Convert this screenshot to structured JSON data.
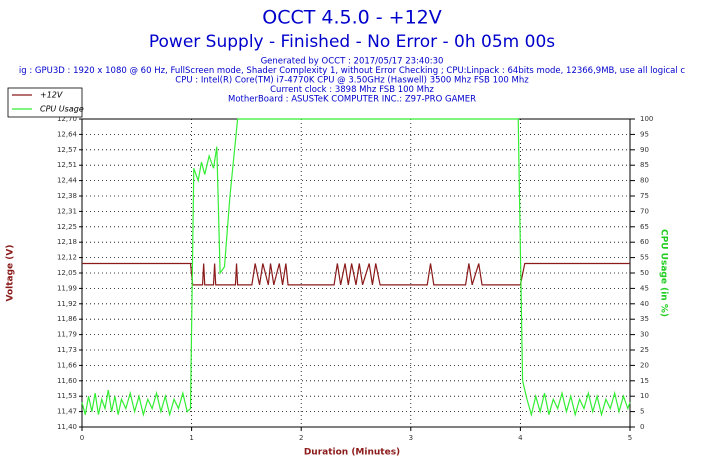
{
  "chart_data": {
    "type": "line",
    "title": "OCCT 4.5.0 - +12V",
    "subtitle": "Power Supply - Finished - No Error - 0h 05m 00s",
    "annotations": [
      "Generated by OCCT : 2017/05/17 23:40:30",
      "ig : GPU3D : 1920 x 1080 @ 60 Hz, FullScreen mode, Shader Complexity 1, without Error Checking ; CPU:Linpack : 64bits mode, 12366,9MB, use all logical c",
      "CPU : Intel(R) Core(TM) i7-4770K CPU @ 3.50GHz (Haswell) 3500 Mhz FSB 100 Mhz",
      "Current clock : 3898 Mhz FSB 100 Mhz",
      "MotherBoard : ASUSTeK COMPUTER INC.: Z97-PRO GAMER"
    ],
    "xlabel": "Duration (Minutes)",
    "ylabel": "Voltage (V)",
    "y2label": "CPU Usage (in %)",
    "xlim": [
      0,
      5
    ],
    "xticks": [
      0,
      1,
      2,
      3,
      4,
      5
    ],
    "ylim": [
      11.4,
      12.7
    ],
    "yticks": [
      {
        "value": 11.4,
        "label": "11,40"
      },
      {
        "value": 11.465,
        "label": "11,47"
      },
      {
        "value": 11.53,
        "label": "11,53"
      },
      {
        "value": 11.595,
        "label": "11,60"
      },
      {
        "value": 11.66,
        "label": "11,66"
      },
      {
        "value": 11.725,
        "label": "11,73"
      },
      {
        "value": 11.79,
        "label": "11,79"
      },
      {
        "value": 11.855,
        "label": "11,86"
      },
      {
        "value": 11.92,
        "label": "11,92"
      },
      {
        "value": 11.985,
        "label": "11,99"
      },
      {
        "value": 12.05,
        "label": "12,05"
      },
      {
        "value": 12.115,
        "label": "12,12"
      },
      {
        "value": 12.18,
        "label": "12,18"
      },
      {
        "value": 12.245,
        "label": "12,25"
      },
      {
        "value": 12.31,
        "label": "12,31"
      },
      {
        "value": 12.375,
        "label": "12,38"
      },
      {
        "value": 12.44,
        "label": "12,44"
      },
      {
        "value": 12.505,
        "label": "12,51"
      },
      {
        "value": 12.57,
        "label": "12,57"
      },
      {
        "value": 12.635,
        "label": "12,64"
      },
      {
        "value": 12.7,
        "label": "12,70"
      }
    ],
    "y2lim": [
      0,
      100
    ],
    "y2ticks": [
      0,
      5,
      10,
      15,
      20,
      25,
      30,
      35,
      40,
      45,
      50,
      55,
      60,
      65,
      70,
      75,
      80,
      85,
      90,
      95,
      100
    ],
    "grid": true,
    "legend": "upper left",
    "series": [
      {
        "name": "+12V",
        "color": "#8b1a1a",
        "x": [
          0,
          0.99,
          1.01,
          1.1,
          1.11,
          1.12,
          1.2,
          1.21,
          1.22,
          1.4,
          1.41,
          1.42,
          1.55,
          1.58,
          1.62,
          1.65,
          1.7,
          1.72,
          1.75,
          1.8,
          1.83,
          1.86,
          1.88,
          2.3,
          2.33,
          2.36,
          2.4,
          2.43,
          2.46,
          2.5,
          2.53,
          2.56,
          2.62,
          2.65,
          2.68,
          2.72,
          3.15,
          3.18,
          3.21,
          3.5,
          3.53,
          3.56,
          3.62,
          3.65,
          4.0,
          4.04,
          5.0
        ],
        "values": [
          12.09,
          12.09,
          12.0,
          12.0,
          12.09,
          12.0,
          12.0,
          12.09,
          12.0,
          12.0,
          12.09,
          12.0,
          12.0,
          12.09,
          12.0,
          12.09,
          12.0,
          12.09,
          12.0,
          12.09,
          12.0,
          12.09,
          12.0,
          12.0,
          12.09,
          12.0,
          12.09,
          12.0,
          12.09,
          12.0,
          12.09,
          12.0,
          12.09,
          12.0,
          12.09,
          12.0,
          12.0,
          12.09,
          12.0,
          12.0,
          12.09,
          12.0,
          12.09,
          12.0,
          12.0,
          12.09,
          12.09
        ]
      },
      {
        "name": "CPU Usage",
        "color": "#33ee33",
        "axis": "y2",
        "x": [
          0,
          0.03,
          0.06,
          0.09,
          0.12,
          0.15,
          0.18,
          0.21,
          0.24,
          0.27,
          0.3,
          0.33,
          0.36,
          0.4,
          0.44,
          0.48,
          0.52,
          0.56,
          0.6,
          0.64,
          0.68,
          0.72,
          0.76,
          0.8,
          0.84,
          0.88,
          0.92,
          0.96,
          0.99,
          1.02,
          1.06,
          1.09,
          1.12,
          1.16,
          1.2,
          1.23,
          1.26,
          1.3,
          1.35,
          1.42,
          3.98,
          4.02,
          4.06,
          4.1,
          4.14,
          4.18,
          4.22,
          4.26,
          4.3,
          4.34,
          4.38,
          4.42,
          4.46,
          4.5,
          4.54,
          4.58,
          4.62,
          4.66,
          4.7,
          4.74,
          4.78,
          4.82,
          4.86,
          4.9,
          4.94,
          4.98,
          5.0
        ],
        "values": [
          8,
          4,
          10,
          5,
          11,
          4,
          9,
          6,
          12,
          5,
          10,
          4,
          9,
          6,
          11,
          5,
          10,
          4,
          9,
          6,
          11,
          5,
          10,
          4,
          9,
          6,
          11,
          5,
          6,
          84,
          80,
          86,
          82,
          88,
          84,
          91,
          50,
          52,
          75,
          100,
          100,
          15,
          9,
          4,
          10,
          5,
          11,
          4,
          9,
          6,
          11,
          5,
          10,
          4,
          9,
          6,
          11,
          5,
          10,
          4,
          9,
          6,
          11,
          5,
          10,
          6,
          8
        ]
      }
    ]
  }
}
